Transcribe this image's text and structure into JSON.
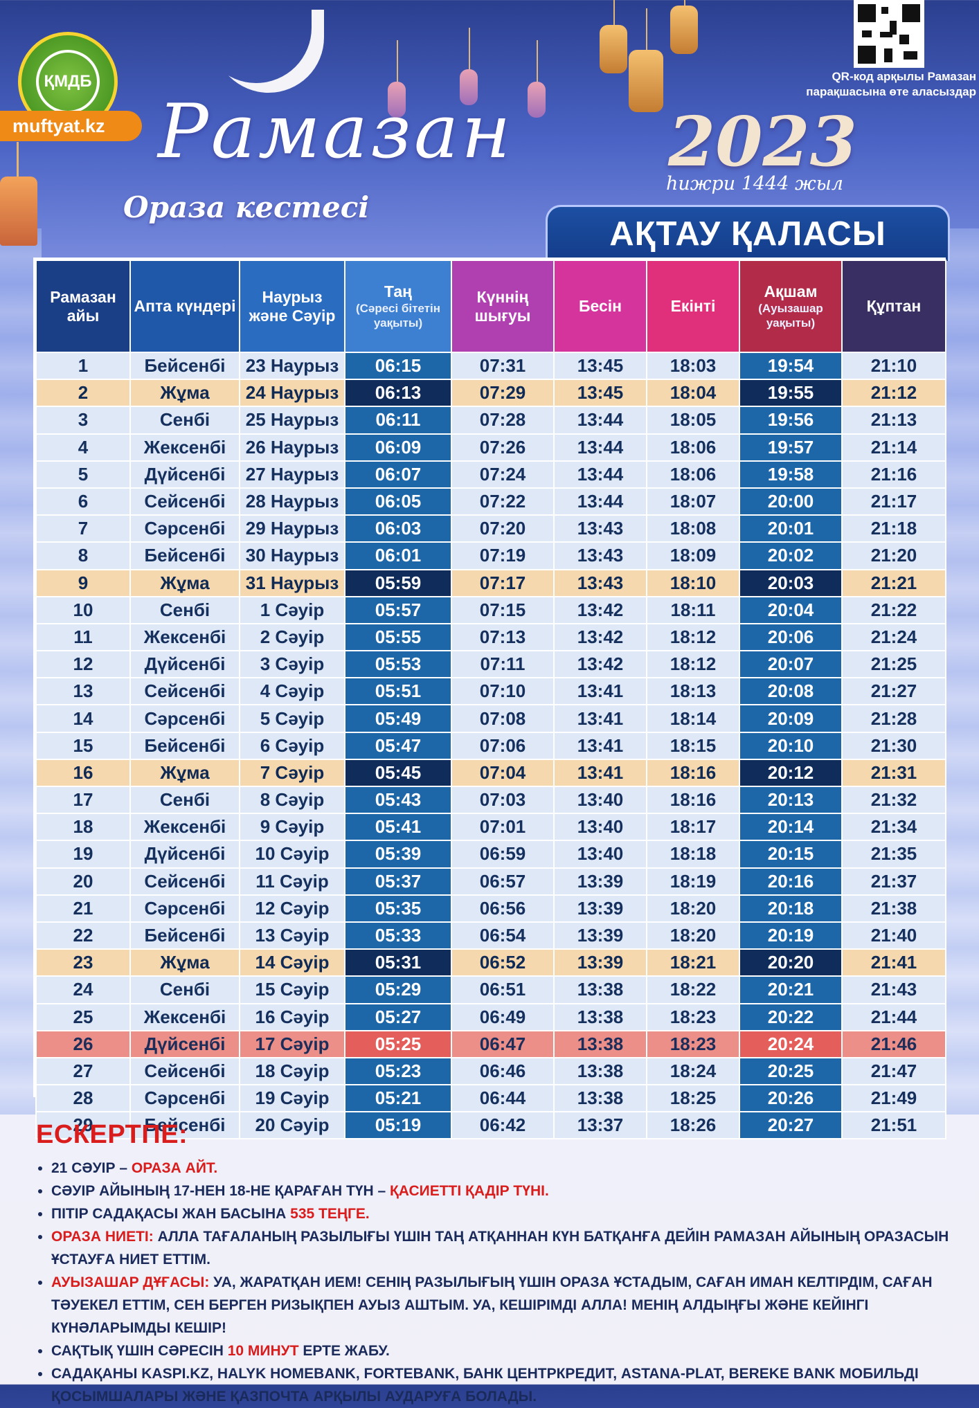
{
  "header": {
    "logo_text": "ҚМДБ",
    "site": "muftyat.kz",
    "title": "Рамазан",
    "subtitle": "Ораза кестесі",
    "year": "2023",
    "hijri": "һижри 1444 жыл",
    "qr_caption_1": "QR-код арқылы Рамазан",
    "qr_caption_2": "парақшасына өте аласыздар",
    "city": "АҚТАУ ҚАЛАСЫ"
  },
  "colors": {
    "header_navy": "#1b3f86",
    "fajr_cell": "#1d67a9",
    "friday_row": "#f6d8ae",
    "special_row": "#ec8f88",
    "accent_red": "#d91c1c"
  },
  "table": {
    "headers": {
      "day": "Рамазан айы",
      "weekday": "Апта күндері",
      "date": "Наурыз және Сәуір",
      "fajr": "Таң",
      "fajr_sub": "(Сәресі бітетін уақыты)",
      "sunrise": "Күннің шығуы",
      "dhuhr": "Бесін",
      "asr": "Екінті",
      "maghrib": "Ақшам",
      "maghrib_sub": "(Ауызашар уақыты)",
      "isha": "Құптан"
    },
    "rows": [
      {
        "day": "1",
        "weekday": "Бейсенбі",
        "date": "23 Наурыз",
        "fajr": "06:15",
        "sunrise": "07:31",
        "dhuhr": "13:45",
        "asr": "18:03",
        "maghrib": "19:54",
        "isha": "21:10",
        "type": ""
      },
      {
        "day": "2",
        "weekday": "Жұма",
        "date": "24 Наурыз",
        "fajr": "06:13",
        "sunrise": "07:29",
        "dhuhr": "13:45",
        "asr": "18:04",
        "maghrib": "19:55",
        "isha": "21:12",
        "type": "fri"
      },
      {
        "day": "3",
        "weekday": "Сенбі",
        "date": "25 Наурыз",
        "fajr": "06:11",
        "sunrise": "07:28",
        "dhuhr": "13:44",
        "asr": "18:05",
        "maghrib": "19:56",
        "isha": "21:13",
        "type": ""
      },
      {
        "day": "4",
        "weekday": "Жексенбі",
        "date": "26 Наурыз",
        "fajr": "06:09",
        "sunrise": "07:26",
        "dhuhr": "13:44",
        "asr": "18:06",
        "maghrib": "19:57",
        "isha": "21:14",
        "type": ""
      },
      {
        "day": "5",
        "weekday": "Дүйсенбі",
        "date": "27 Наурыз",
        "fajr": "06:07",
        "sunrise": "07:24",
        "dhuhr": "13:44",
        "asr": "18:06",
        "maghrib": "19:58",
        "isha": "21:16",
        "type": ""
      },
      {
        "day": "6",
        "weekday": "Сейсенбі",
        "date": "28 Наурыз",
        "fajr": "06:05",
        "sunrise": "07:22",
        "dhuhr": "13:44",
        "asr": "18:07",
        "maghrib": "20:00",
        "isha": "21:17",
        "type": ""
      },
      {
        "day": "7",
        "weekday": "Сәрсенбі",
        "date": "29 Наурыз",
        "fajr": "06:03",
        "sunrise": "07:20",
        "dhuhr": "13:43",
        "asr": "18:08",
        "maghrib": "20:01",
        "isha": "21:18",
        "type": ""
      },
      {
        "day": "8",
        "weekday": "Бейсенбі",
        "date": "30 Наурыз",
        "fajr": "06:01",
        "sunrise": "07:19",
        "dhuhr": "13:43",
        "asr": "18:09",
        "maghrib": "20:02",
        "isha": "21:20",
        "type": ""
      },
      {
        "day": "9",
        "weekday": "Жұма",
        "date": "31 Наурыз",
        "fajr": "05:59",
        "sunrise": "07:17",
        "dhuhr": "13:43",
        "asr": "18:10",
        "maghrib": "20:03",
        "isha": "21:21",
        "type": "fri"
      },
      {
        "day": "10",
        "weekday": "Сенбі",
        "date": "1 Сәуір",
        "fajr": "05:57",
        "sunrise": "07:15",
        "dhuhr": "13:42",
        "asr": "18:11",
        "maghrib": "20:04",
        "isha": "21:22",
        "type": ""
      },
      {
        "day": "11",
        "weekday": "Жексенбі",
        "date": "2 Сәуір",
        "fajr": "05:55",
        "sunrise": "07:13",
        "dhuhr": "13:42",
        "asr": "18:12",
        "maghrib": "20:06",
        "isha": "21:24",
        "type": ""
      },
      {
        "day": "12",
        "weekday": "Дүйсенбі",
        "date": "3 Сәуір",
        "fajr": "05:53",
        "sunrise": "07:11",
        "dhuhr": "13:42",
        "asr": "18:12",
        "maghrib": "20:07",
        "isha": "21:25",
        "type": ""
      },
      {
        "day": "13",
        "weekday": "Сейсенбі",
        "date": "4 Сәуір",
        "fajr": "05:51",
        "sunrise": "07:10",
        "dhuhr": "13:41",
        "asr": "18:13",
        "maghrib": "20:08",
        "isha": "21:27",
        "type": ""
      },
      {
        "day": "14",
        "weekday": "Сәрсенбі",
        "date": "5 Сәуір",
        "fajr": "05:49",
        "sunrise": "07:08",
        "dhuhr": "13:41",
        "asr": "18:14",
        "maghrib": "20:09",
        "isha": "21:28",
        "type": ""
      },
      {
        "day": "15",
        "weekday": "Бейсенбі",
        "date": "6 Сәуір",
        "fajr": "05:47",
        "sunrise": "07:06",
        "dhuhr": "13:41",
        "asr": "18:15",
        "maghrib": "20:10",
        "isha": "21:30",
        "type": ""
      },
      {
        "day": "16",
        "weekday": "Жұма",
        "date": "7 Сәуір",
        "fajr": "05:45",
        "sunrise": "07:04",
        "dhuhr": "13:41",
        "asr": "18:16",
        "maghrib": "20:12",
        "isha": "21:31",
        "type": "fri"
      },
      {
        "day": "17",
        "weekday": "Сенбі",
        "date": "8 Сәуір",
        "fajr": "05:43",
        "sunrise": "07:03",
        "dhuhr": "13:40",
        "asr": "18:16",
        "maghrib": "20:13",
        "isha": "21:32",
        "type": ""
      },
      {
        "day": "18",
        "weekday": "Жексенбі",
        "date": "9 Сәуір",
        "fajr": "05:41",
        "sunrise": "07:01",
        "dhuhr": "13:40",
        "asr": "18:17",
        "maghrib": "20:14",
        "isha": "21:34",
        "type": ""
      },
      {
        "day": "19",
        "weekday": "Дүйсенбі",
        "date": "10 Сәуір",
        "fajr": "05:39",
        "sunrise": "06:59",
        "dhuhr": "13:40",
        "asr": "18:18",
        "maghrib": "20:15",
        "isha": "21:35",
        "type": ""
      },
      {
        "day": "20",
        "weekday": "Сейсенбі",
        "date": "11 Сәуір",
        "fajr": "05:37",
        "sunrise": "06:57",
        "dhuhr": "13:39",
        "asr": "18:19",
        "maghrib": "20:16",
        "isha": "21:37",
        "type": ""
      },
      {
        "day": "21",
        "weekday": "Сәрсенбі",
        "date": "12 Сәуір",
        "fajr": "05:35",
        "sunrise": "06:56",
        "dhuhr": "13:39",
        "asr": "18:20",
        "maghrib": "20:18",
        "isha": "21:38",
        "type": ""
      },
      {
        "day": "22",
        "weekday": "Бейсенбі",
        "date": "13 Сәуір",
        "fajr": "05:33",
        "sunrise": "06:54",
        "dhuhr": "13:39",
        "asr": "18:20",
        "maghrib": "20:19",
        "isha": "21:40",
        "type": ""
      },
      {
        "day": "23",
        "weekday": "Жұма",
        "date": "14 Сәуір",
        "fajr": "05:31",
        "sunrise": "06:52",
        "dhuhr": "13:39",
        "asr": "18:21",
        "maghrib": "20:20",
        "isha": "21:41",
        "type": "fri"
      },
      {
        "day": "24",
        "weekday": "Сенбі",
        "date": "15 Сәуір",
        "fajr": "05:29",
        "sunrise": "06:51",
        "dhuhr": "13:38",
        "asr": "18:22",
        "maghrib": "20:21",
        "isha": "21:43",
        "type": ""
      },
      {
        "day": "25",
        "weekday": "Жексенбі",
        "date": "16 Сәуір",
        "fajr": "05:27",
        "sunrise": "06:49",
        "dhuhr": "13:38",
        "asr": "18:23",
        "maghrib": "20:22",
        "isha": "21:44",
        "type": ""
      },
      {
        "day": "26",
        "weekday": "Дүйсенбі",
        "date": "17 Сәуір",
        "fajr": "05:25",
        "sunrise": "06:47",
        "dhuhr": "13:38",
        "asr": "18:23",
        "maghrib": "20:24",
        "isha": "21:46",
        "type": "special"
      },
      {
        "day": "27",
        "weekday": "Сейсенбі",
        "date": "18 Сәуір",
        "fajr": "05:23",
        "sunrise": "06:46",
        "dhuhr": "13:38",
        "asr": "18:24",
        "maghrib": "20:25",
        "isha": "21:47",
        "type": ""
      },
      {
        "day": "28",
        "weekday": "Сәрсенбі",
        "date": "19 Сәуір",
        "fajr": "05:21",
        "sunrise": "06:44",
        "dhuhr": "13:38",
        "asr": "18:25",
        "maghrib": "20:26",
        "isha": "21:49",
        "type": ""
      },
      {
        "day": "29",
        "weekday": "Бейсенбі",
        "date": "20 Сәуір",
        "fajr": "05:19",
        "sunrise": "06:42",
        "dhuhr": "13:37",
        "asr": "18:26",
        "maghrib": "20:27",
        "isha": "21:51",
        "type": ""
      }
    ]
  },
  "notes": {
    "title": "ЕСКЕРТПЕ:",
    "items": [
      [
        {
          "t": "21 Сәуір – ",
          "red": false
        },
        {
          "t": "Ораза айт.",
          "red": true
        }
      ],
      [
        {
          "t": "Сәуір айының 17-нен 18-не қараған түн – ",
          "red": false
        },
        {
          "t": "Қасиетті Қадір түні.",
          "red": true
        }
      ],
      [
        {
          "t": "Пітір садақасы жан басына ",
          "red": false
        },
        {
          "t": "535 теңге.",
          "red": true
        }
      ],
      [
        {
          "t": "Ораза ниеті:",
          "red": true
        },
        {
          "t": " Алла Тағаланың разылығы үшін таң атқаннан күн батқанға дейін Рамазан айының оразасын ұстауға ниет еттім.",
          "red": false
        }
      ],
      [
        {
          "t": "Ауызашар дұғасы:",
          "red": true
        },
        {
          "t": " Уа, Жаратқан Ием! Сенің разылығың үшін ораза ұстадым, Саған иман келтірдім, Саған тәуекел еттім, Сен берген ризықпен ауыз аштым. Уа, Кешірімді Алла! Менің алдыңғы және кейінгі күнәларымды кешір!",
          "red": false
        }
      ],
      [
        {
          "t": "Сақтық үшін сәресін ",
          "red": false
        },
        {
          "t": "10 минут",
          "red": true
        },
        {
          "t": " ерте жабу.",
          "red": false
        }
      ],
      [
        {
          "t": "Садақаны Kaspi.kz, Halyk Homebank, Fortebank, Банк ЦентрКредит, Astana-Plat, Bereke Bank мобильді қосымшалары және ҚазПочта арқылы аударуға болады.",
          "red": false
        }
      ]
    ]
  }
}
